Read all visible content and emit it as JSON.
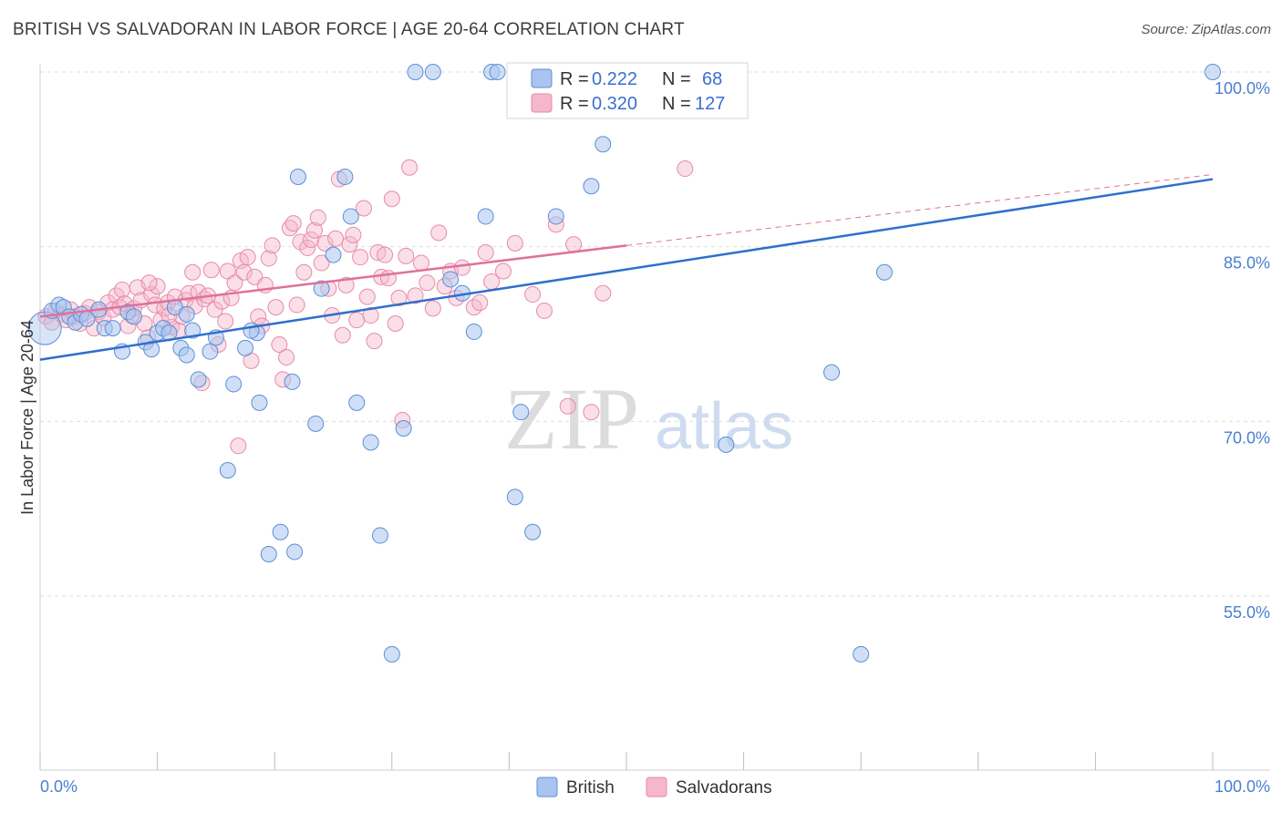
{
  "header": {
    "title": "BRITISH VS SALVADORAN IN LABOR FORCE | AGE 20-64 CORRELATION CHART",
    "source": "Source: ZipAtlas.com"
  },
  "watermark": {
    "zip": "ZIP",
    "atlas": "atlas"
  },
  "colors": {
    "british_fill": "#a9c4ee",
    "british_stroke": "#5b8fd8",
    "british_line": "#2f6fce",
    "salvadoran_fill": "#f5b8cb",
    "salvadoran_stroke": "#e88aa8",
    "salvadoran_line": "#e0709a",
    "tick_label": "#4a7fd0",
    "grid": "#dddddd"
  },
  "legend": {
    "r_label": "R =",
    "n_label": "N =",
    "british": {
      "r": "0.222",
      "n": "68"
    },
    "salvadoran": {
      "r": "0.320",
      "n": "127"
    }
  },
  "chart_data": {
    "type": "scatter",
    "title": "BRITISH VS SALVADORAN IN LABOR FORCE | AGE 20-64 CORRELATION CHART",
    "xlabel": "",
    "ylabel": "In Labor Force | Age 20-64",
    "xlim": [
      0,
      100
    ],
    "ylim": [
      40,
      101.5
    ],
    "x_tick_labels": {
      "left": "0.0%",
      "right": "100.0%"
    },
    "y_ticks": [
      {
        "value": 100,
        "label": "100.0%"
      },
      {
        "value": 85,
        "label": "85.0%"
      },
      {
        "value": 70,
        "label": "70.0%"
      },
      {
        "value": 55,
        "label": "55.0%"
      }
    ],
    "series": [
      {
        "name": "British",
        "r": 0.222,
        "n": 68,
        "trend": {
          "x0": 0,
          "y0": 75.3,
          "x1": 100,
          "y1": 90.8
        },
        "points": [
          [
            0.4,
            78.0
          ],
          [
            1.0,
            79.5
          ],
          [
            1.6,
            80.0
          ],
          [
            2.0,
            79.8
          ],
          [
            2.5,
            79.0
          ],
          [
            3.0,
            78.5
          ],
          [
            3.5,
            79.2
          ],
          [
            4.0,
            78.8
          ],
          [
            5.0,
            79.6
          ],
          [
            5.5,
            78.0
          ],
          [
            6.2,
            78.0
          ],
          [
            7.0,
            76.0
          ],
          [
            7.5,
            79.4
          ],
          [
            8.0,
            79.0
          ],
          [
            9.0,
            76.8
          ],
          [
            9.5,
            76.2
          ],
          [
            10.0,
            77.6
          ],
          [
            10.5,
            78.0
          ],
          [
            11.0,
            77.6
          ],
          [
            11.5,
            79.8
          ],
          [
            12.0,
            76.3
          ],
          [
            12.5,
            75.7
          ],
          [
            13.0,
            77.8
          ],
          [
            13.5,
            73.6
          ],
          [
            14.5,
            76.0
          ],
          [
            15.0,
            77.2
          ],
          [
            16.0,
            65.8
          ],
          [
            16.5,
            73.2
          ],
          [
            17.5,
            76.3
          ],
          [
            18.5,
            77.6
          ],
          [
            18.7,
            71.6
          ],
          [
            19.5,
            58.6
          ],
          [
            20.5,
            60.5
          ],
          [
            21.5,
            73.4
          ],
          [
            21.7,
            58.8
          ],
          [
            22.0,
            91.0
          ],
          [
            23.5,
            69.8
          ],
          [
            24.0,
            81.4
          ],
          [
            25.0,
            84.3
          ],
          [
            26.0,
            91.0
          ],
          [
            26.5,
            87.6
          ],
          [
            27.0,
            71.6
          ],
          [
            28.2,
            68.2
          ],
          [
            29.0,
            60.2
          ],
          [
            30.0,
            50.0
          ],
          [
            31.0,
            69.4
          ],
          [
            32.0,
            100.0
          ],
          [
            33.5,
            100.0
          ],
          [
            35.0,
            82.2
          ],
          [
            36.0,
            81.0
          ],
          [
            37.0,
            77.7
          ],
          [
            38.0,
            87.6
          ],
          [
            38.5,
            100.0
          ],
          [
            39.0,
            100.0
          ],
          [
            40.5,
            63.5
          ],
          [
            41.0,
            70.8
          ],
          [
            42.0,
            60.5
          ],
          [
            44.0,
            87.6
          ],
          [
            47.0,
            90.2
          ],
          [
            48.0,
            93.8
          ],
          [
            49.0,
            100.0
          ],
          [
            58.5,
            68.0
          ],
          [
            67.5,
            74.2
          ],
          [
            70.0,
            50.0
          ],
          [
            72.0,
            82.8
          ],
          [
            100.0,
            100.0
          ],
          [
            18.0,
            77.8
          ],
          [
            12.5,
            79.2
          ]
        ]
      },
      {
        "name": "Salvadorans",
        "r": 0.32,
        "n": 127,
        "trend": {
          "x0": 0,
          "y0": 79.0,
          "x1": 50,
          "y1": 85.1
        },
        "trend_extension": {
          "x0": 50,
          "y0": 85.1,
          "x1": 100,
          "y1": 91.2
        },
        "points": [
          [
            0.5,
            79.0
          ],
          [
            1.0,
            78.5
          ],
          [
            1.3,
            79.5
          ],
          [
            1.8,
            79.2
          ],
          [
            2.2,
            78.7
          ],
          [
            2.6,
            79.6
          ],
          [
            3.0,
            79.0
          ],
          [
            3.4,
            78.4
          ],
          [
            3.8,
            79.3
          ],
          [
            4.2,
            79.8
          ],
          [
            4.6,
            78.0
          ],
          [
            5.0,
            79.4
          ],
          [
            5.4,
            78.9
          ],
          [
            5.8,
            80.2
          ],
          [
            6.2,
            79.6
          ],
          [
            6.5,
            80.8
          ],
          [
            6.8,
            79.8
          ],
          [
            7.0,
            81.3
          ],
          [
            7.2,
            80.1
          ],
          [
            7.5,
            78.2
          ],
          [
            7.8,
            79.1
          ],
          [
            8.0,
            79.7
          ],
          [
            8.3,
            81.5
          ],
          [
            8.6,
            80.4
          ],
          [
            8.9,
            78.4
          ],
          [
            9.2,
            77.2
          ],
          [
            9.5,
            80.9
          ],
          [
            9.8,
            80.0
          ],
          [
            10.0,
            81.6
          ],
          [
            10.3,
            78.7
          ],
          [
            10.6,
            79.7
          ],
          [
            10.9,
            80.2
          ],
          [
            11.2,
            78.1
          ],
          [
            11.5,
            80.7
          ],
          [
            11.8,
            77.8
          ],
          [
            12.1,
            79.0
          ],
          [
            12.4,
            80.4
          ],
          [
            12.7,
            81.0
          ],
          [
            13.0,
            82.8
          ],
          [
            13.2,
            79.9
          ],
          [
            13.5,
            81.1
          ],
          [
            13.8,
            73.3
          ],
          [
            14.0,
            80.5
          ],
          [
            14.3,
            80.8
          ],
          [
            14.6,
            83.0
          ],
          [
            14.9,
            79.6
          ],
          [
            15.2,
            76.6
          ],
          [
            15.5,
            80.3
          ],
          [
            15.8,
            78.6
          ],
          [
            16.0,
            82.9
          ],
          [
            16.3,
            80.6
          ],
          [
            16.6,
            81.9
          ],
          [
            16.9,
            67.9
          ],
          [
            17.1,
            83.8
          ],
          [
            17.4,
            82.8
          ],
          [
            17.7,
            84.1
          ],
          [
            18.0,
            75.2
          ],
          [
            18.3,
            82.4
          ],
          [
            18.6,
            79.0
          ],
          [
            18.9,
            78.2
          ],
          [
            19.2,
            81.7
          ],
          [
            19.5,
            84.0
          ],
          [
            19.8,
            85.1
          ],
          [
            20.1,
            79.8
          ],
          [
            20.4,
            76.6
          ],
          [
            20.7,
            73.6
          ],
          [
            21.0,
            75.5
          ],
          [
            21.3,
            86.6
          ],
          [
            21.6,
            87.0
          ],
          [
            21.9,
            80.0
          ],
          [
            22.2,
            85.4
          ],
          [
            22.5,
            82.8
          ],
          [
            22.8,
            84.9
          ],
          [
            23.1,
            85.6
          ],
          [
            23.4,
            86.4
          ],
          [
            23.7,
            87.5
          ],
          [
            24.0,
            83.6
          ],
          [
            24.3,
            85.3
          ],
          [
            24.6,
            81.4
          ],
          [
            24.9,
            79.1
          ],
          [
            25.2,
            85.7
          ],
          [
            25.5,
            90.8
          ],
          [
            25.8,
            77.4
          ],
          [
            26.1,
            81.7
          ],
          [
            26.4,
            85.2
          ],
          [
            26.7,
            86.0
          ],
          [
            27.0,
            78.7
          ],
          [
            27.3,
            84.1
          ],
          [
            27.6,
            88.3
          ],
          [
            27.9,
            80.7
          ],
          [
            28.2,
            79.1
          ],
          [
            28.5,
            76.9
          ],
          [
            28.8,
            84.5
          ],
          [
            29.1,
            82.4
          ],
          [
            29.4,
            84.3
          ],
          [
            29.7,
            82.3
          ],
          [
            30.0,
            89.1
          ],
          [
            30.3,
            78.4
          ],
          [
            30.6,
            80.6
          ],
          [
            30.9,
            70.1
          ],
          [
            31.2,
            84.2
          ],
          [
            31.5,
            91.8
          ],
          [
            32.0,
            80.8
          ],
          [
            32.5,
            83.6
          ],
          [
            33.0,
            81.9
          ],
          [
            33.5,
            79.7
          ],
          [
            34.0,
            86.2
          ],
          [
            34.5,
            81.6
          ],
          [
            35.0,
            82.9
          ],
          [
            35.5,
            80.6
          ],
          [
            36.0,
            83.2
          ],
          [
            37.0,
            79.8
          ],
          [
            37.5,
            80.2
          ],
          [
            38.0,
            84.5
          ],
          [
            38.5,
            82.0
          ],
          [
            39.5,
            82.9
          ],
          [
            40.5,
            85.3
          ],
          [
            42.0,
            80.9
          ],
          [
            43.0,
            79.5
          ],
          [
            44.0,
            86.9
          ],
          [
            45.0,
            71.3
          ],
          [
            45.5,
            85.2
          ],
          [
            47.0,
            70.8
          ],
          [
            48.0,
            81.0
          ],
          [
            55.0,
            91.7
          ],
          [
            11.0,
            79.1
          ],
          [
            9.3,
            81.9
          ]
        ]
      }
    ]
  },
  "bottom_legend": {
    "british": "British",
    "salvadoran": "Salvadorans"
  }
}
